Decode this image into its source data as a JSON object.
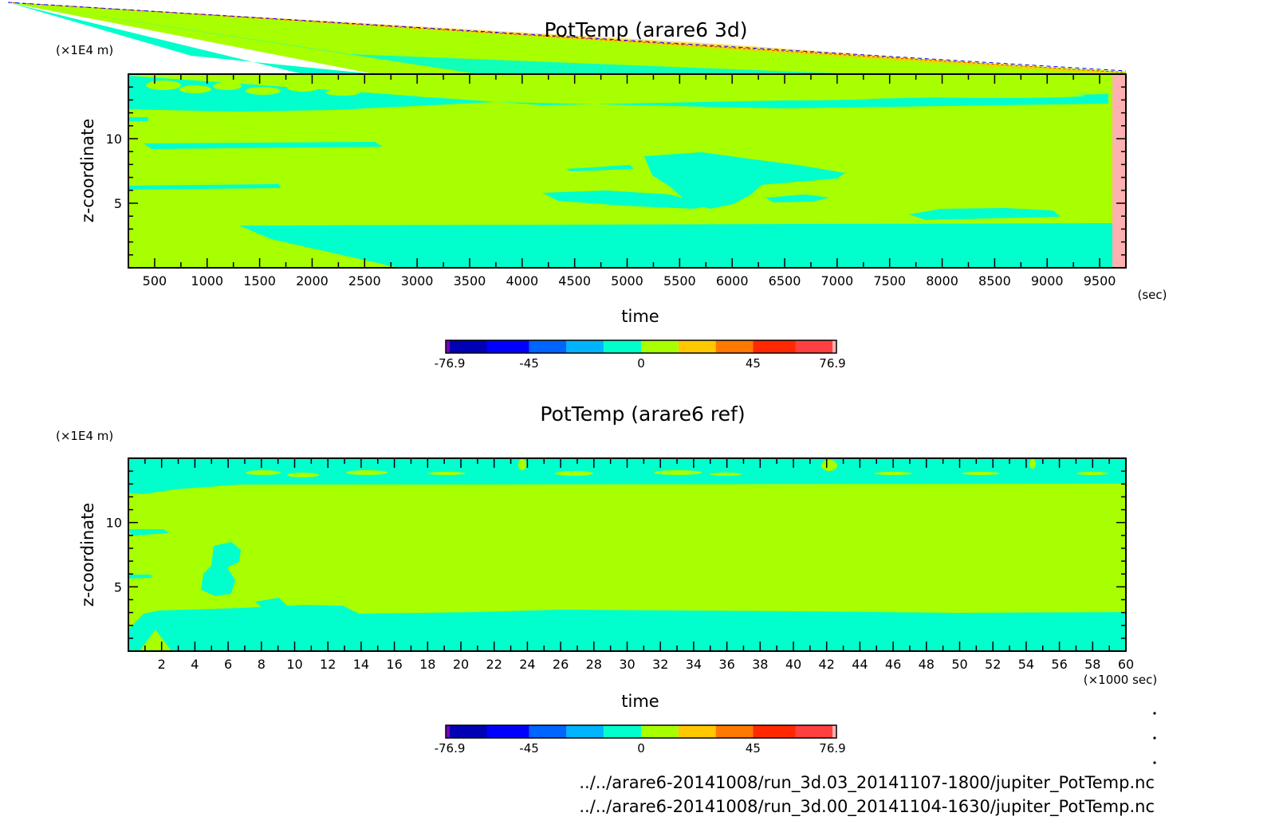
{
  "chart_data": [
    {
      "type": "heatmap",
      "title": "PotTemp (arare6 3d)",
      "xlabel": "time",
      "xunit": "(sec)",
      "ylabel": "z-coordinate",
      "yunit": "(×1E4 m)",
      "xlim": [
        250,
        9750
      ],
      "ylim": [
        0,
        15
      ],
      "x_ticks": [
        500,
        1000,
        1500,
        2000,
        2500,
        3000,
        3500,
        4000,
        4500,
        5000,
        5500,
        6000,
        6500,
        7000,
        7500,
        8000,
        8500,
        9000,
        9500
      ],
      "x_tick_labels": [
        "500",
        "1000",
        "1500",
        "2000",
        "2500",
        "3000",
        "3500",
        "4000",
        "4500",
        "5000",
        "5500",
        "6000",
        "6500",
        "7000",
        "7500",
        "8000",
        "8500",
        "9000",
        "9500"
      ],
      "y_ticks": [
        5,
        10
      ],
      "y_tick_labels": [
        "5",
        "10"
      ],
      "data_end_x": 9330,
      "regions": {
        "background": "0 to +15",
        "patches": "-15 to 0",
        "beyond_data_end": "+45 to +62"
      }
    },
    {
      "type": "heatmap",
      "title": "PotTemp (arare6 ref)",
      "xlabel": "time",
      "xunit": "(×1000 sec)",
      "ylabel": "z-coordinate",
      "yunit": "(×1E4 m)",
      "xlim": [
        0,
        60
      ],
      "ylim": [
        0,
        15
      ],
      "x_ticks": [
        2,
        4,
        6,
        8,
        10,
        12,
        14,
        16,
        18,
        20,
        22,
        24,
        26,
        28,
        30,
        32,
        34,
        36,
        38,
        40,
        42,
        44,
        46,
        48,
        50,
        52,
        54,
        56,
        58,
        60
      ],
      "x_tick_labels": [
        "2",
        "4",
        "6",
        "8",
        "10",
        "12",
        "14",
        "16",
        "18",
        "20",
        "22",
        "24",
        "26",
        "28",
        "30",
        "32",
        "34",
        "36",
        "38",
        "40",
        "42",
        "44",
        "46",
        "48",
        "50",
        "52",
        "54",
        "56",
        "58",
        "60"
      ],
      "y_ticks": [
        5,
        10
      ],
      "y_tick_labels": [
        "5",
        "10"
      ]
    }
  ],
  "colorbar": {
    "levels": [
      -76.9,
      -62,
      -45,
      -30,
      -15,
      0,
      15,
      30,
      45,
      62,
      76.9
    ],
    "labels": [
      "-76.9",
      "-45",
      "0",
      "45",
      "76.9"
    ],
    "label_values": [
      -76.9,
      -45,
      0,
      45,
      76.9
    ],
    "colors": [
      "#0000b4",
      "#0000ff",
      "#0064ff",
      "#00b4ff",
      "#00ffcc",
      "#a8ff00",
      "#ffc800",
      "#ff7800",
      "#ff2800",
      "#ff4040"
    ],
    "under_color": "#7800b4",
    "over_color": "#ffb0b0"
  },
  "colors": {
    "bg_value": "#a8ff00",
    "neg_small": "#00ffcc",
    "beyond": "#ffb0b0",
    "axis": "#000000"
  },
  "footer": {
    "file1": "../../arare6-20141008/run_3d.03_20141107-1800/jupiter_PotTemp.nc",
    "file2": "../../arare6-20141008/run_3d.00_20141104-1630/jupiter_PotTemp.nc"
  }
}
